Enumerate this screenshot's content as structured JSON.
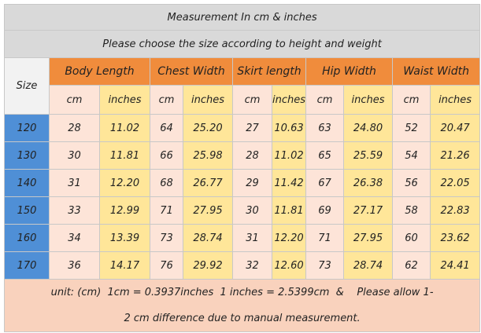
{
  "title": "Measurement In cm & inches",
  "subtitle": "Please choose the size according to height and weight",
  "table": {
    "size_header": "Size",
    "groups": [
      "Body Length",
      "Chest Width",
      "Skirt length",
      "Hip Width",
      "Waist Width"
    ],
    "units": [
      "cm",
      "inches",
      "cm",
      "inches",
      "cm",
      "inches",
      "cm",
      "inches",
      "cm",
      "inches"
    ],
    "rows": [
      [
        "120",
        "28",
        "11.02",
        "64",
        "25.20",
        "27",
        "10.63",
        "63",
        "24.80",
        "52",
        "20.47"
      ],
      [
        "130",
        "30",
        "11.81",
        "66",
        "25.98",
        "28",
        "11.02",
        "65",
        "25.59",
        "54",
        "21.26"
      ],
      [
        "140",
        "31",
        "12.20",
        "68",
        "26.77",
        "29",
        "11.42",
        "67",
        "26.38",
        "56",
        "22.05"
      ],
      [
        "150",
        "33",
        "12.99",
        "71",
        "27.95",
        "30",
        "11.81",
        "69",
        "27.17",
        "58",
        "22.83"
      ],
      [
        "160",
        "34",
        "13.39",
        "73",
        "28.74",
        "31",
        "12.20",
        "71",
        "27.95",
        "60",
        "23.62"
      ],
      [
        "170",
        "36",
        "14.17",
        "76",
        "29.92",
        "32",
        "12.60",
        "73",
        "28.74",
        "62",
        "24.41"
      ]
    ]
  },
  "footer": [
    "unit: (cm)  1cm = 0.3937inches  1 inches = 2.5399cm  &    Please allow 1-",
    "2 cm difference due to manual measurement."
  ]
}
